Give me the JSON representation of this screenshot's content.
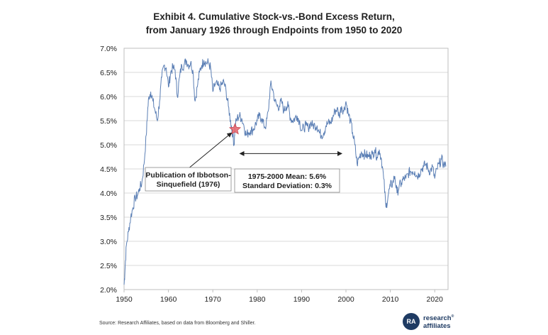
{
  "title_line1": "Exhibit 4. Cumulative Stock-vs.-Bond Excess Return,",
  "title_line2": "from January 1926 through Endpoints from 1950 to 2020",
  "source": "Source: Research Affiliates, based on data from Bloomberg and Shiller.",
  "logo": {
    "mark": "RA",
    "line1": "research",
    "line2": "affiliates",
    "reg": "®"
  },
  "colors": {
    "line": "#5b7fb5",
    "star": "#e8626a",
    "grid": "#d9d9d9"
  },
  "chart_data": {
    "type": "line",
    "xlabel": "",
    "ylabel": "",
    "xlim": [
      1950,
      2023
    ],
    "ylim": [
      0.02,
      0.07
    ],
    "x_ticks": [
      1950,
      1960,
      1970,
      1980,
      1990,
      2000,
      2010,
      2020
    ],
    "y_ticks": [
      "2.0%",
      "2.5%",
      "3.0%",
      "3.5%",
      "4.0%",
      "4.5%",
      "5.0%",
      "5.5%",
      "6.0%",
      "6.5%",
      "7.0%"
    ],
    "series": [
      {
        "name": "Cumulative excess return",
        "x": [
          1950.0,
          1950.2,
          1950.5,
          1951.0,
          1951.5,
          1952.0,
          1952.5,
          1953.0,
          1953.5,
          1954.0,
          1954.5,
          1955.0,
          1955.3,
          1955.6,
          1956.0,
          1956.5,
          1957.0,
          1957.5,
          1958.0,
          1958.5,
          1959.0,
          1959.5,
          1960.0,
          1960.5,
          1961.0,
          1961.5,
          1962.0,
          1962.5,
          1963.0,
          1963.5,
          1964.0,
          1964.5,
          1965.0,
          1965.5,
          1966.0,
          1966.5,
          1967.0,
          1967.5,
          1968.0,
          1968.5,
          1969.0,
          1969.5,
          1970.0,
          1970.5,
          1971.0,
          1971.5,
          1972.0,
          1972.5,
          1973.0,
          1973.5,
          1974.0,
          1974.5,
          1974.8,
          1975.0,
          1975.5,
          1976.0,
          1976.5,
          1977.0,
          1977.5,
          1978.0,
          1978.5,
          1979.0,
          1979.5,
          1980.0,
          1980.5,
          1981.0,
          1981.5,
          1982.0,
          1982.5,
          1983.0,
          1983.5,
          1984.0,
          1984.5,
          1985.0,
          1985.5,
          1986.0,
          1986.5,
          1987.0,
          1987.5,
          1988.0,
          1988.5,
          1989.0,
          1989.5,
          1990.0,
          1990.5,
          1991.0,
          1991.5,
          1992.0,
          1992.5,
          1993.0,
          1993.5,
          1994.0,
          1994.5,
          1995.0,
          1995.5,
          1996.0,
          1996.5,
          1997.0,
          1997.5,
          1998.0,
          1998.5,
          1999.0,
          1999.5,
          2000.0,
          2000.5,
          2001.0,
          2001.5,
          2002.0,
          2002.5,
          2003.0,
          2003.5,
          2004.0,
          2004.5,
          2005.0,
          2005.5,
          2006.0,
          2006.5,
          2007.0,
          2007.5,
          2008.0,
          2008.5,
          2009.0,
          2009.5,
          2010.0,
          2010.5,
          2011.0,
          2011.5,
          2012.0,
          2012.5,
          2013.0,
          2013.5,
          2014.0,
          2014.5,
          2015.0,
          2015.5,
          2016.0,
          2016.5,
          2017.0,
          2017.5,
          2018.0,
          2018.5,
          2019.0,
          2019.5,
          2020.0,
          2020.5,
          2021.0,
          2021.5,
          2022.0,
          2022.5
        ],
        "values": [
          0.021,
          0.024,
          0.029,
          0.032,
          0.035,
          0.037,
          0.039,
          0.0395,
          0.041,
          0.042,
          0.046,
          0.052,
          0.057,
          0.06,
          0.061,
          0.059,
          0.057,
          0.055,
          0.059,
          0.064,
          0.0665,
          0.066,
          0.062,
          0.065,
          0.066,
          0.0655,
          0.06,
          0.064,
          0.0665,
          0.0665,
          0.0675,
          0.0665,
          0.067,
          0.0655,
          0.059,
          0.062,
          0.065,
          0.0665,
          0.0675,
          0.067,
          0.067,
          0.066,
          0.061,
          0.0625,
          0.0625,
          0.0615,
          0.0625,
          0.063,
          0.061,
          0.058,
          0.055,
          0.052,
          0.05,
          0.054,
          0.0555,
          0.056,
          0.0555,
          0.054,
          0.052,
          0.0525,
          0.053,
          0.053,
          0.054,
          0.055,
          0.056,
          0.0555,
          0.054,
          0.054,
          0.057,
          0.0625,
          0.0615,
          0.059,
          0.058,
          0.058,
          0.059,
          0.057,
          0.058,
          0.058,
          0.0555,
          0.055,
          0.0555,
          0.056,
          0.055,
          0.053,
          0.0535,
          0.054,
          0.0535,
          0.0545,
          0.054,
          0.054,
          0.054,
          0.0525,
          0.052,
          0.0525,
          0.054,
          0.0545,
          0.0545,
          0.0555,
          0.057,
          0.0575,
          0.056,
          0.058,
          0.057,
          0.059,
          0.0565,
          0.055,
          0.0525,
          0.05,
          0.046,
          0.0475,
          0.0485,
          0.048,
          0.048,
          0.0475,
          0.048,
          0.048,
          0.049,
          0.0475,
          0.049,
          0.047,
          0.043,
          0.037,
          0.0395,
          0.0415,
          0.042,
          0.0435,
          0.04,
          0.0415,
          0.042,
          0.043,
          0.043,
          0.044,
          0.0445,
          0.0445,
          0.0445,
          0.0435,
          0.044,
          0.045,
          0.0455,
          0.046,
          0.045,
          0.0445,
          0.0455,
          0.043,
          0.045,
          0.046,
          0.047,
          0.046,
          0.0455
        ]
      }
    ],
    "annotations": [
      {
        "id": "publication",
        "lines": [
          "Publication of Ibbotson-",
          "Sinquefield (1976)"
        ],
        "point_x": 1975.0,
        "point_y": 0.0532
      },
      {
        "id": "mean",
        "lines": [
          "1975-2000 Mean:  5.6%",
          "Standard Deviation:  0.3%"
        ],
        "range_x": [
          1975,
          2000
        ],
        "arrow_y": 0.047
      }
    ]
  }
}
